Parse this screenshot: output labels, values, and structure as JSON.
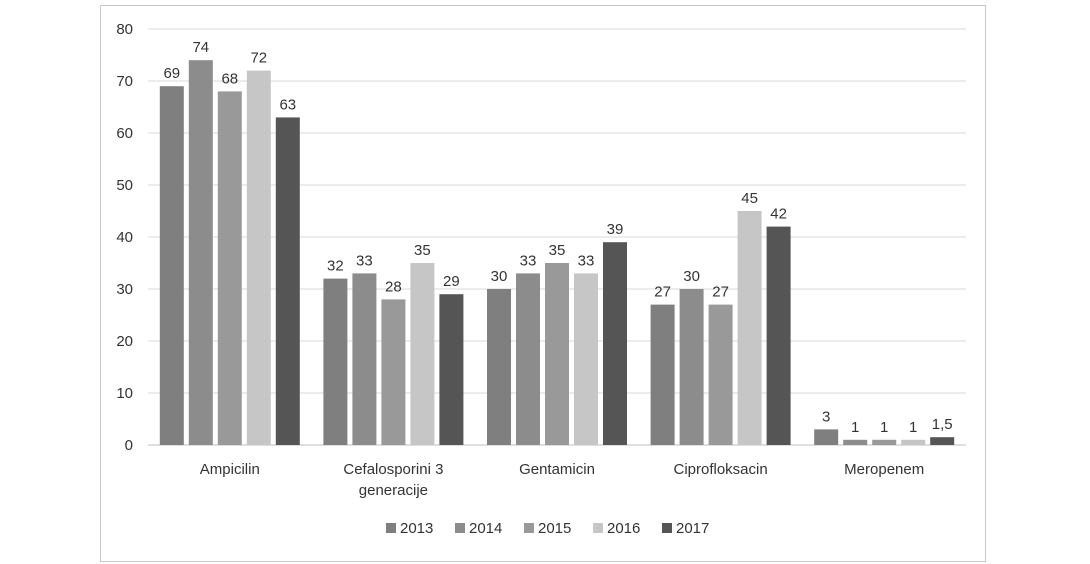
{
  "chart_data": {
    "type": "bar",
    "categories": [
      "Ampicilin",
      "Cefalosporini 3 generacije",
      "Gentamicin",
      "Ciprofloksacin",
      "Meropenem"
    ],
    "category_label_lines": [
      [
        "Ampicilin"
      ],
      [
        "Cefalosporini 3",
        "generacije"
      ],
      [
        "Gentamicin"
      ],
      [
        "Ciprofloksacin"
      ],
      [
        "Meropenem"
      ]
    ],
    "series": [
      {
        "name": "2013",
        "color": "#7f7f7f",
        "values": [
          69,
          32,
          30,
          27,
          3
        ],
        "labels": [
          "69",
          "32",
          "30",
          "27",
          "3"
        ]
      },
      {
        "name": "2014",
        "color": "#8c8c8c",
        "values": [
          74,
          33,
          33,
          30,
          1
        ],
        "labels": [
          "74",
          "33",
          "33",
          "30",
          "1"
        ]
      },
      {
        "name": "2015",
        "color": "#999999",
        "values": [
          68,
          28,
          35,
          27,
          1
        ],
        "labels": [
          "68",
          "28",
          "35",
          "27",
          "1"
        ]
      },
      {
        "name": "2016",
        "color": "#c6c6c6",
        "values": [
          72,
          35,
          33,
          45,
          1
        ],
        "labels": [
          "72",
          "35",
          "33",
          "45",
          "1"
        ]
      },
      {
        "name": "2017",
        "color": "#555555",
        "values": [
          63,
          29,
          39,
          42,
          1.5
        ],
        "labels": [
          "63",
          "29",
          "39",
          "42",
          "1,5"
        ]
      }
    ],
    "yticks": [
      "0",
      "10",
      "20",
      "30",
      "40",
      "50",
      "60",
      "70",
      "80"
    ],
    "ylim": [
      0,
      80
    ],
    "title": "",
    "xlabel": "",
    "ylabel": "",
    "grid": true,
    "legend_position": "bottom"
  }
}
